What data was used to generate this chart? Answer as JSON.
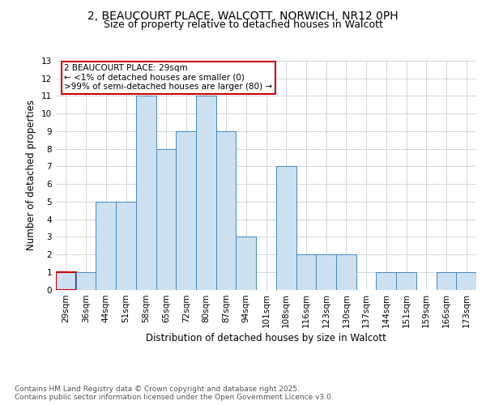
{
  "title_line1": "2, BEAUCOURT PLACE, WALCOTT, NORWICH, NR12 0PH",
  "title_line2": "Size of property relative to detached houses in Walcott",
  "xlabel": "Distribution of detached houses by size in Walcott",
  "ylabel": "Number of detached properties",
  "categories": [
    "29sqm",
    "36sqm",
    "44sqm",
    "51sqm",
    "58sqm",
    "65sqm",
    "72sqm",
    "80sqm",
    "87sqm",
    "94sqm",
    "101sqm",
    "108sqm",
    "116sqm",
    "123sqm",
    "130sqm",
    "137sqm",
    "144sqm",
    "151sqm",
    "159sqm",
    "166sqm",
    "173sqm"
  ],
  "values": [
    1,
    1,
    5,
    5,
    11,
    8,
    9,
    11,
    9,
    3,
    0,
    7,
    2,
    2,
    2,
    0,
    1,
    1,
    0,
    1,
    1
  ],
  "bar_color": "#cce0f0",
  "bar_edge_color": "#4488bb",
  "highlight_bar_index": 0,
  "highlight_edge_color": "#cc0000",
  "annotation_text": "2 BEAUCOURT PLACE: 29sqm\n← <1% of detached houses are smaller (0)\n>99% of semi-detached houses are larger (80) →",
  "annotation_box_color": "#ffffff",
  "annotation_box_edge_color": "#cc0000",
  "ylim": [
    0,
    13
  ],
  "yticks": [
    0,
    1,
    2,
    3,
    4,
    5,
    6,
    7,
    8,
    9,
    10,
    11,
    12,
    13
  ],
  "footer_text": "Contains HM Land Registry data © Crown copyright and database right 2025.\nContains public sector information licensed under the Open Government Licence v3.0.",
  "bg_color": "#ffffff",
  "grid_color": "#c8d0d8",
  "title_fontsize": 10,
  "subtitle_fontsize": 9,
  "axis_label_fontsize": 8.5,
  "tick_fontsize": 7.5,
  "annotation_fontsize": 7.5,
  "footer_fontsize": 6.5
}
